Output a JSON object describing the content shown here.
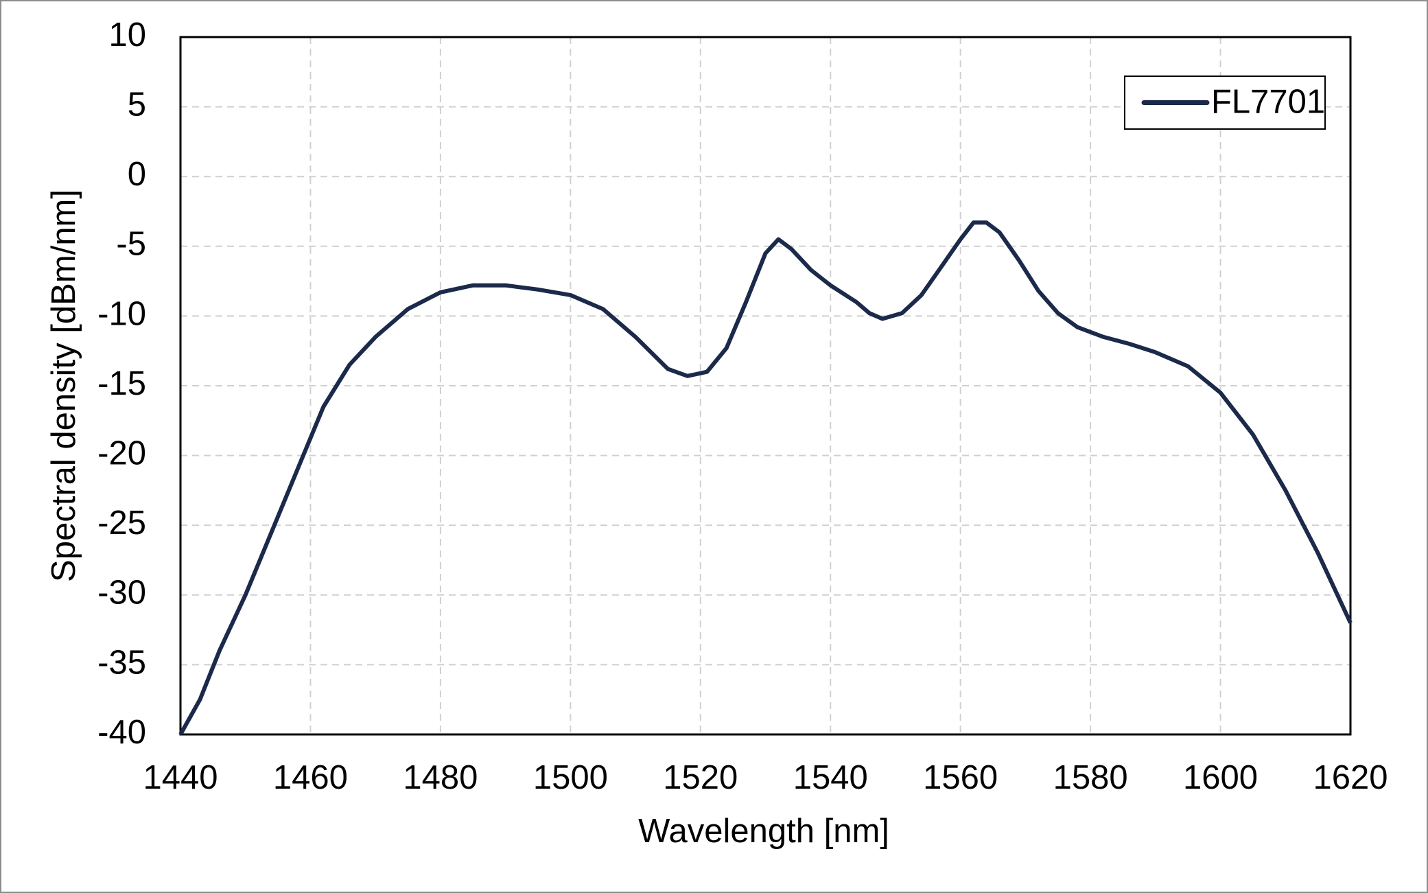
{
  "chart_data": {
    "type": "line",
    "x_label": "Wavelength [nm]",
    "y_label": "Spectral density [dBm/nm]",
    "x": [
      1440,
      1443,
      1446,
      1450,
      1454,
      1458,
      1462,
      1466,
      1470,
      1475,
      1480,
      1485,
      1490,
      1495,
      1500,
      1505,
      1510,
      1515,
      1518,
      1521,
      1524,
      1527,
      1530,
      1532,
      1534,
      1537,
      1540,
      1544,
      1546,
      1548,
      1551,
      1554,
      1557,
      1560,
      1562,
      1564,
      1566,
      1569,
      1572,
      1575,
      1578,
      1582,
      1586,
      1590,
      1595,
      1600,
      1605,
      1610,
      1615,
      1620
    ],
    "series": [
      {
        "name": "FL7701",
        "color": "#1b2a4a",
        "values": [
          -40,
          -37.5,
          -34,
          -30,
          -25.5,
          -21,
          -16.5,
          -13.5,
          -11.5,
          -9.5,
          -8.3,
          -7.8,
          -7.8,
          -8.1,
          -8.5,
          -9.5,
          -11.5,
          -13.8,
          -14.3,
          -14,
          -12.3,
          -9,
          -5.5,
          -4.5,
          -5.2,
          -6.7,
          -7.8,
          -9,
          -9.8,
          -10.2,
          -9.8,
          -8.5,
          -6.5,
          -4.5,
          -3.3,
          -3.3,
          -4,
          -6,
          -8.2,
          -9.8,
          -10.8,
          -11.5,
          -12,
          -12.6,
          -13.6,
          -15.5,
          -18.5,
          -22.5,
          -27,
          -32
        ]
      }
    ],
    "xlim": [
      1440,
      1620
    ],
    "xticks": [
      1440,
      1460,
      1480,
      1500,
      1520,
      1540,
      1560,
      1580,
      1600,
      1620
    ],
    "ylim": [
      -40,
      10
    ],
    "yticks": [
      -40,
      -35,
      -30,
      -25,
      -20,
      -15,
      -10,
      -5,
      0,
      5,
      10
    ],
    "grid": true,
    "legend": "upper right"
  }
}
